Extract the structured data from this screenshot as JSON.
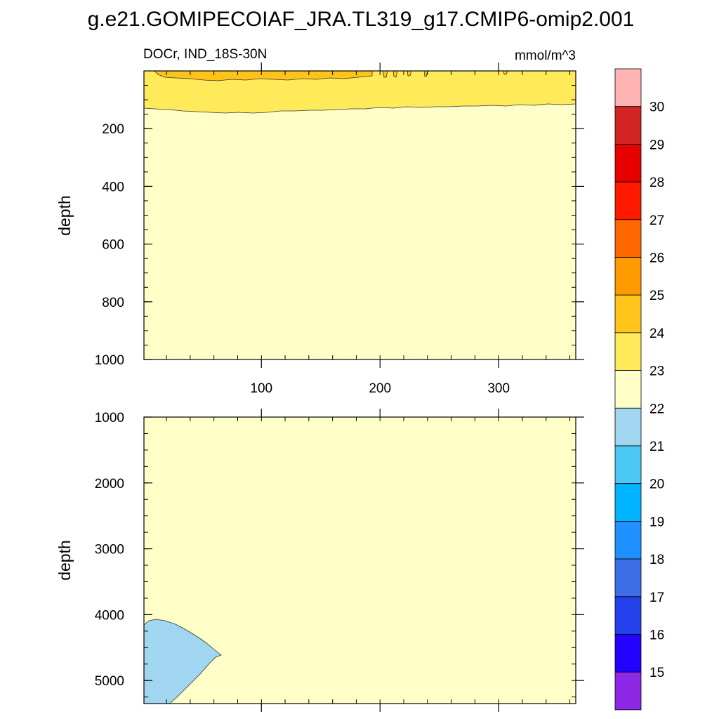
{
  "title": "g.e21.GOMIPECOIAF_JRA.TL319_g17.CMIP6-omip2.001",
  "chart_data": {
    "type": "contour",
    "subtitle_left": "DOCr, IND_18S-30N",
    "units": "mmol/m^3",
    "x_ticks": [
      "100",
      "200",
      "300"
    ],
    "x_tick_values": [
      100,
      200,
      300
    ],
    "x_range": [
      1,
      365
    ],
    "panels": [
      {
        "name": "upper",
        "ylabel": "depth",
        "ylim": [
          0,
          1000
        ],
        "y_ticks": [
          "200",
          "400",
          "600",
          "800",
          "1000"
        ],
        "y_tick_values": [
          200,
          400,
          600,
          800,
          1000
        ],
        "background_level": "22-23",
        "regions": [
          {
            "name": "23-24 band",
            "depth_range_approx": [
              0,
              150
            ],
            "level": "23-24"
          },
          {
            "name": "24-25 surface",
            "depth_range_approx": [
              0,
              30
            ],
            "level": "24-25"
          }
        ]
      },
      {
        "name": "lower",
        "ylabel": "depth",
        "ylim": [
          1000,
          5350
        ],
        "y_ticks": [
          "1000",
          "2000",
          "3000",
          "4000",
          "5000"
        ],
        "y_tick_values": [
          1000,
          2000,
          3000,
          4000,
          5000
        ],
        "background_level": "22-23",
        "regions": [
          {
            "name": "21-22 deep lobe",
            "depth_range_approx": [
              4100,
              5350
            ],
            "level": "21-22"
          }
        ]
      }
    ],
    "colorbar": {
      "labels": [
        "15",
        "16",
        "17",
        "18",
        "19",
        "20",
        "21",
        "22",
        "23",
        "24",
        "25",
        "26",
        "27",
        "28",
        "29",
        "30"
      ],
      "colors": [
        "#ffb4b4",
        "#d22222",
        "#e60000",
        "#ff1a00",
        "#ff6600",
        "#ff9900",
        "#ffc31a",
        "#ffeb5a",
        "#ffffc8",
        "#a0d6f0",
        "#4bc8f5",
        "#00b4ff",
        "#1e90ff",
        "#3c6ee6",
        "#2341eb",
        "#2300ff",
        "#8c28e6"
      ]
    }
  }
}
